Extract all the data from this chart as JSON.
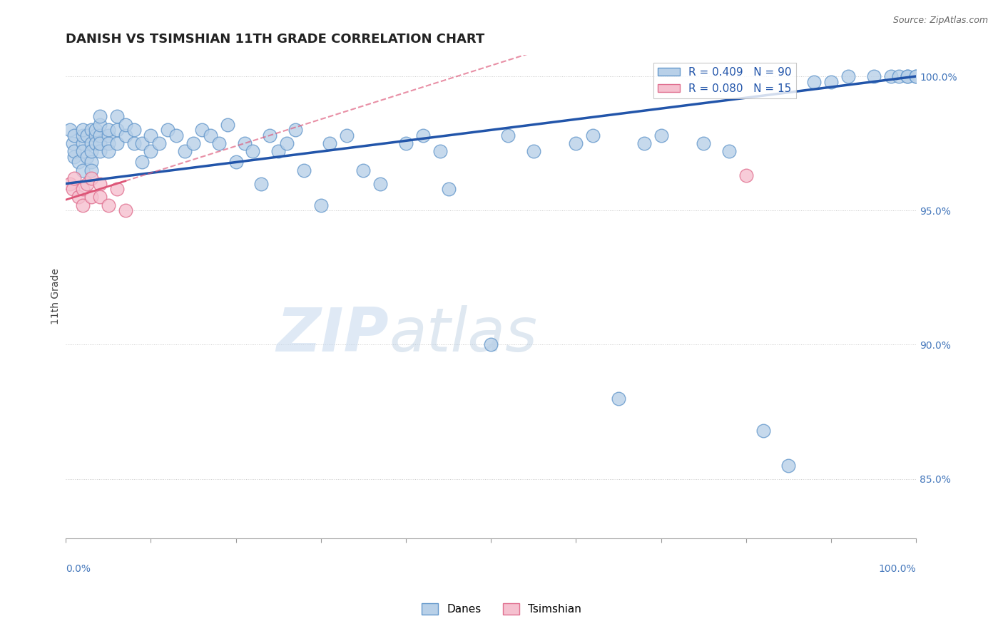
{
  "title": "DANISH VS TSIMSHIAN 11TH GRADE CORRELATION CHART",
  "source": "Source: ZipAtlas.com",
  "ylabel": "11th Grade",
  "xlim": [
    0.0,
    1.0
  ],
  "ylim": [
    0.828,
    1.008
  ],
  "R_danes": 0.409,
  "N_danes": 90,
  "R_tsimshian": 0.08,
  "N_tsimshian": 15,
  "danes_color": "#b8d0e8",
  "danes_edge_color": "#6699cc",
  "tsimshian_color": "#f5c0cf",
  "tsimshian_edge_color": "#e07090",
  "danes_line_color": "#2255aa",
  "tsimshian_line_color": "#dd5577",
  "background_color": "#ffffff",
  "watermark_zip": "ZIP",
  "watermark_atlas": "atlas",
  "danes_x": [
    0.005,
    0.008,
    0.01,
    0.01,
    0.01,
    0.015,
    0.02,
    0.02,
    0.02,
    0.02,
    0.02,
    0.025,
    0.025,
    0.03,
    0.03,
    0.03,
    0.03,
    0.03,
    0.035,
    0.035,
    0.035,
    0.04,
    0.04,
    0.04,
    0.04,
    0.04,
    0.05,
    0.05,
    0.05,
    0.05,
    0.06,
    0.06,
    0.06,
    0.07,
    0.07,
    0.08,
    0.08,
    0.09,
    0.09,
    0.1,
    0.1,
    0.11,
    0.12,
    0.13,
    0.14,
    0.15,
    0.16,
    0.17,
    0.18,
    0.19,
    0.2,
    0.21,
    0.22,
    0.23,
    0.24,
    0.25,
    0.26,
    0.27,
    0.28,
    0.3,
    0.31,
    0.33,
    0.35,
    0.37,
    0.4,
    0.42,
    0.44,
    0.45,
    0.5,
    0.52,
    0.55,
    0.6,
    0.62,
    0.65,
    0.68,
    0.7,
    0.75,
    0.78,
    0.82,
    0.85,
    0.88,
    0.9,
    0.92,
    0.95,
    0.97,
    0.98,
    0.99,
    0.99,
    1.0,
    1.0
  ],
  "danes_y": [
    0.98,
    0.975,
    0.978,
    0.97,
    0.972,
    0.968,
    0.975,
    0.972,
    0.978,
    0.98,
    0.965,
    0.97,
    0.978,
    0.968,
    0.975,
    0.98,
    0.972,
    0.965,
    0.978,
    0.975,
    0.98,
    0.972,
    0.978,
    0.975,
    0.982,
    0.985,
    0.978,
    0.975,
    0.972,
    0.98,
    0.975,
    0.98,
    0.985,
    0.978,
    0.982,
    0.975,
    0.98,
    0.968,
    0.975,
    0.972,
    0.978,
    0.975,
    0.98,
    0.978,
    0.972,
    0.975,
    0.98,
    0.978,
    0.975,
    0.982,
    0.968,
    0.975,
    0.972,
    0.96,
    0.978,
    0.972,
    0.975,
    0.98,
    0.965,
    0.952,
    0.975,
    0.978,
    0.965,
    0.96,
    0.975,
    0.978,
    0.972,
    0.958,
    0.9,
    0.978,
    0.972,
    0.975,
    0.978,
    0.88,
    0.975,
    0.978,
    0.975,
    0.972,
    0.868,
    0.855,
    0.998,
    0.998,
    1.0,
    1.0,
    1.0,
    1.0,
    1.0,
    1.0,
    1.0,
    1.0
  ],
  "tsimshian_x": [
    0.005,
    0.008,
    0.01,
    0.015,
    0.02,
    0.02,
    0.025,
    0.03,
    0.03,
    0.04,
    0.04,
    0.05,
    0.06,
    0.07,
    0.8
  ],
  "tsimshian_y": [
    0.96,
    0.958,
    0.962,
    0.955,
    0.958,
    0.952,
    0.96,
    0.962,
    0.955,
    0.96,
    0.955,
    0.952,
    0.958,
    0.95,
    0.963
  ],
  "danes_line_x0": 0.0,
  "danes_line_x1": 1.0,
  "danes_line_y0": 0.96,
  "danes_line_y1": 1.0,
  "tsim_line_x0": 0.0,
  "tsim_line_x1": 0.07,
  "tsim_line_xd0": 0.07,
  "tsim_line_xd1": 1.0,
  "tsim_line_y0": 0.954,
  "tsim_line_y1": 0.961,
  "title_fontsize": 13,
  "axis_label_fontsize": 10,
  "tick_fontsize": 10,
  "legend_fontsize": 11
}
